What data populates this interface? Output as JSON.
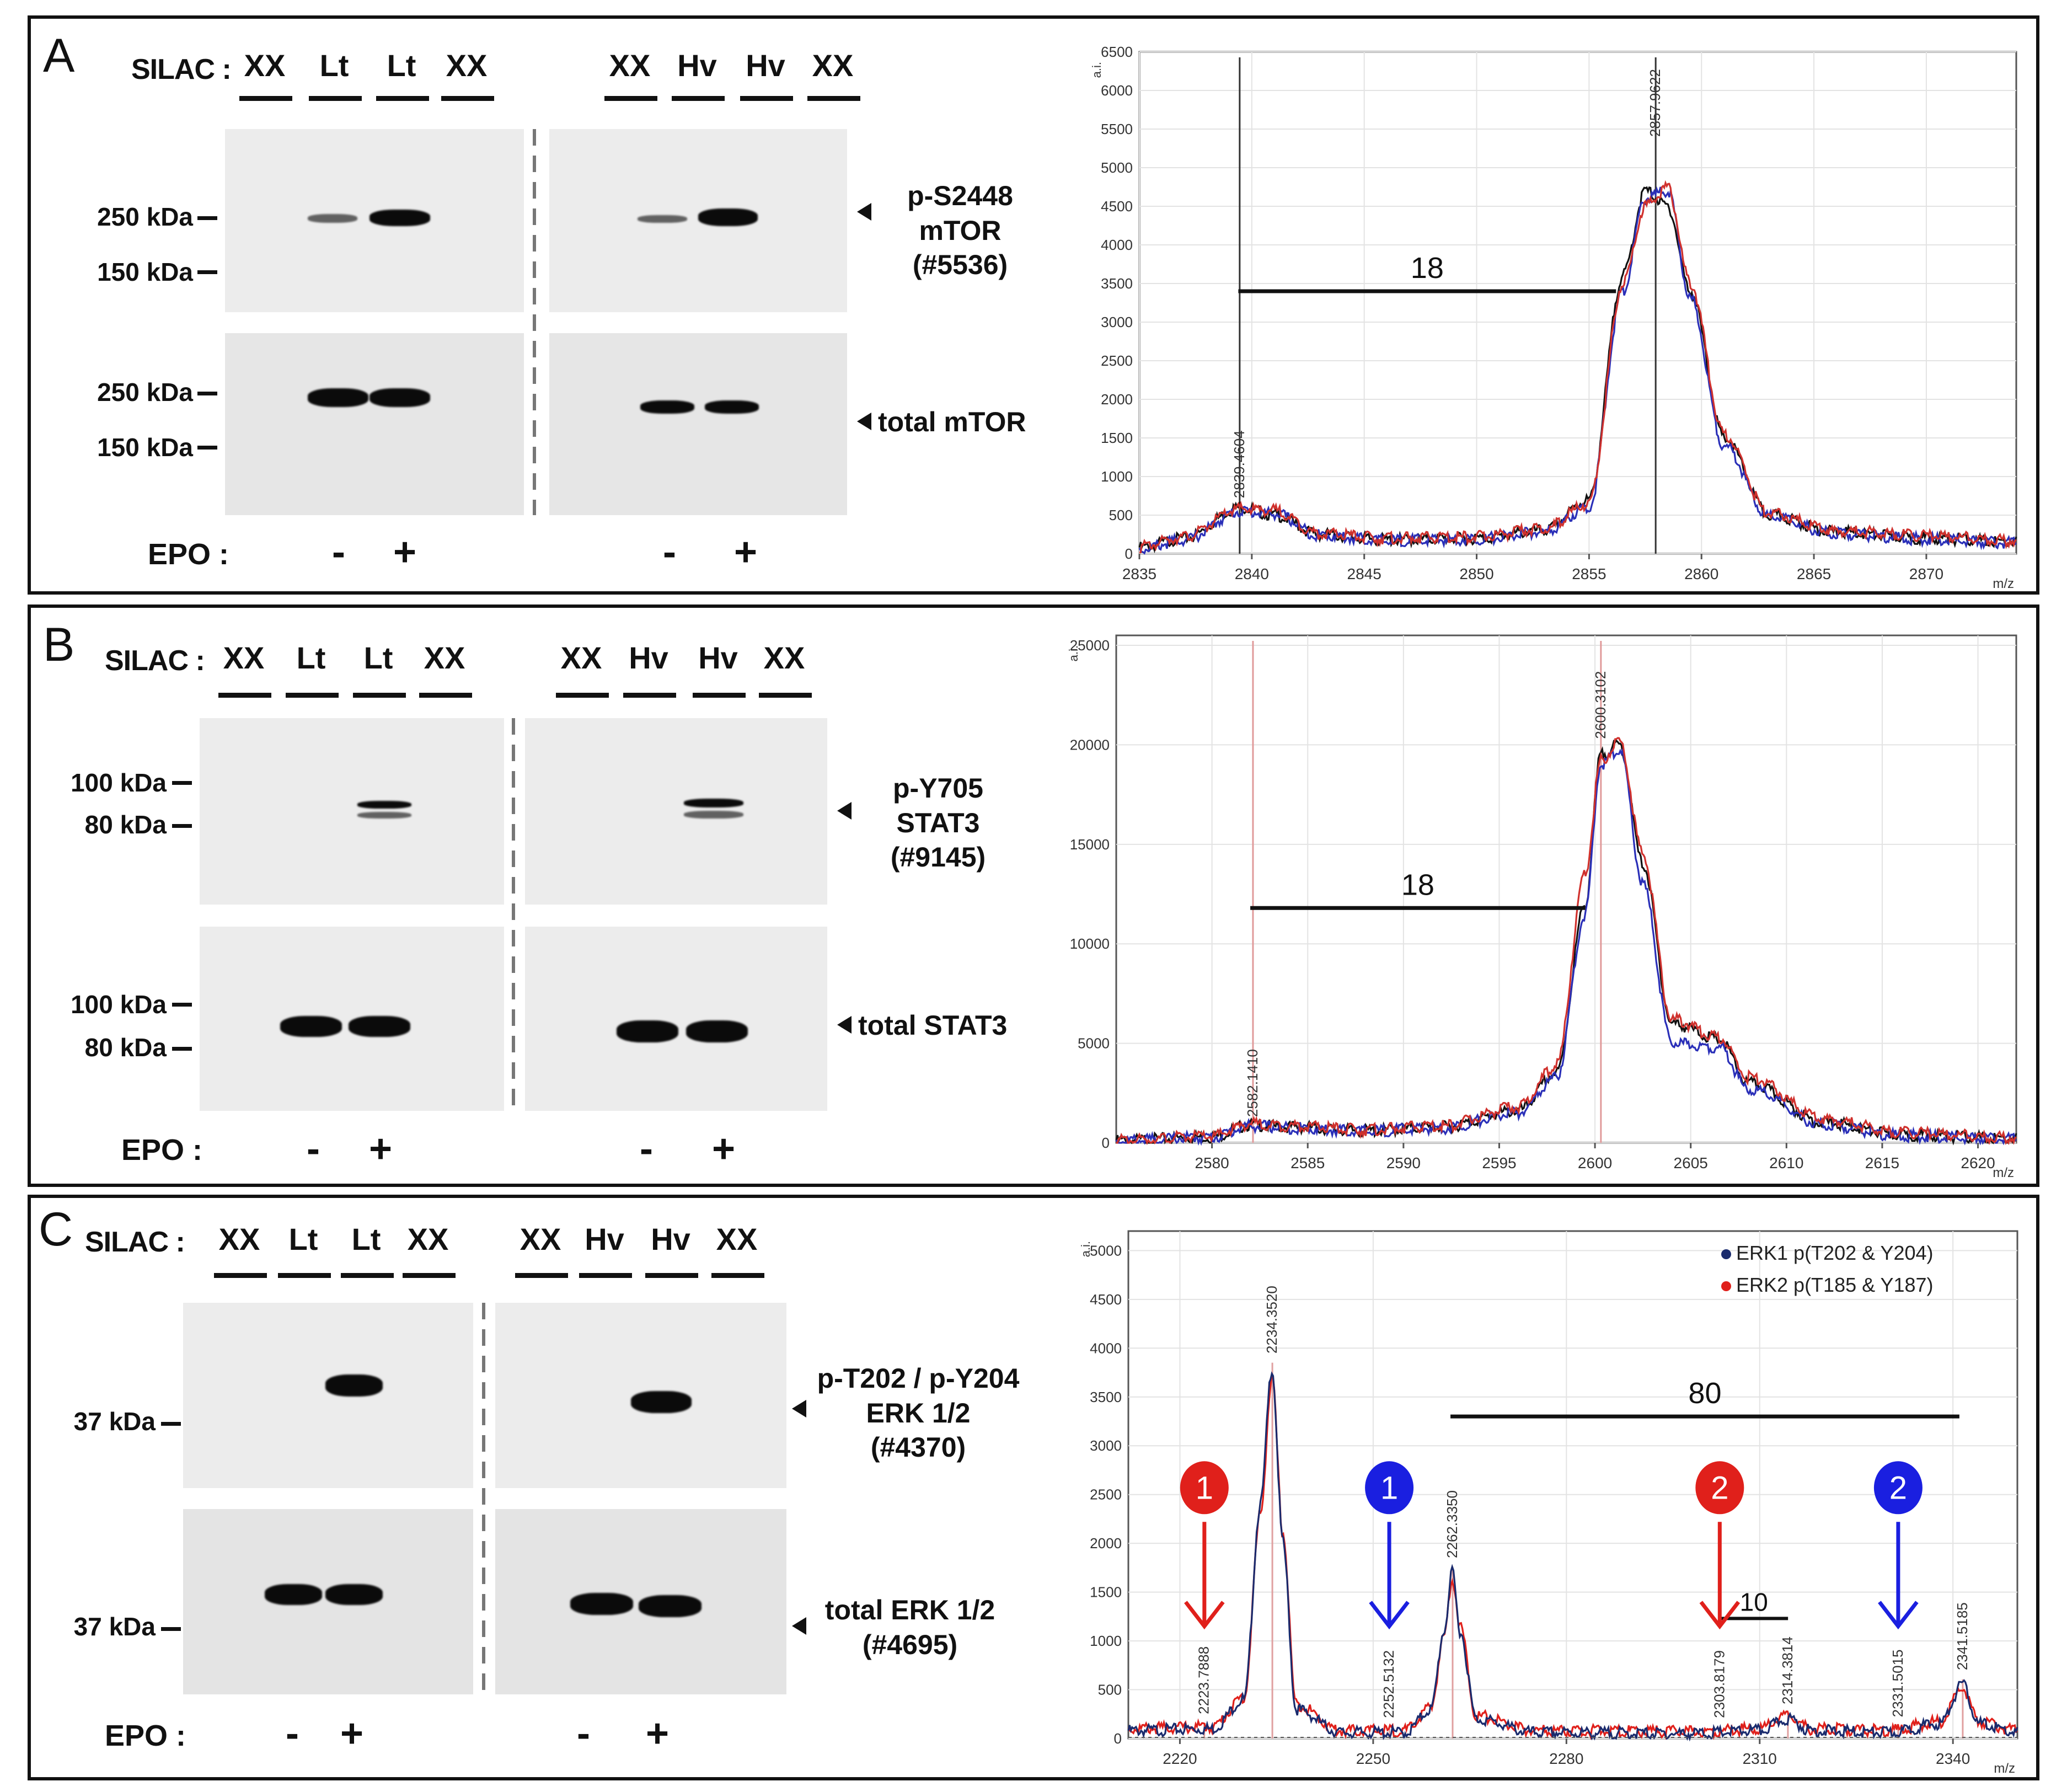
{
  "panels": [
    {
      "label": "A",
      "silac_label": "SILAC :",
      "lanes_left": [
        "XX",
        "Lt",
        "Lt",
        "XX"
      ],
      "lanes_right": [
        "XX",
        "Hv",
        "Hv",
        "XX"
      ],
      "blots": [
        {
          "target": [
            "p-S2448",
            "mTOR",
            "(#5536)"
          ],
          "markers": [
            "250 kDa",
            "150 kDa"
          ]
        },
        {
          "target": [
            "total mTOR"
          ],
          "markers": [
            "250 kDa",
            "150 kDa"
          ]
        }
      ],
      "epo_label": "EPO :",
      "epo_signs": [
        "-",
        "+",
        "-",
        "+"
      ],
      "spectrum": {
        "y_label": "a.i.",
        "x_label": "m/z",
        "y_ticks": [
          0,
          500,
          1000,
          1500,
          2000,
          2500,
          3000,
          3500,
          4000,
          4500,
          5000,
          5500,
          6000,
          6500
        ],
        "x_ticks": [
          2835,
          2840,
          2845,
          2850,
          2855,
          2860,
          2865,
          2870
        ],
        "xlim": [
          2835,
          2874
        ],
        "ylim": [
          0,
          6500
        ],
        "peak_labels": [
          {
            "x": 2839.4604,
            "text": "2839.4604"
          },
          {
            "x": 2857.9622,
            "text": "2857.9622"
          }
        ],
        "bracket": {
          "x1": 2839.4,
          "x2": 2856.2,
          "y": 3400,
          "label": "18"
        }
      }
    },
    {
      "label": "B",
      "silac_label": "SILAC :",
      "lanes_left": [
        "XX",
        "Lt",
        "Lt",
        "XX"
      ],
      "lanes_right": [
        "XX",
        "Hv",
        "Hv",
        "XX"
      ],
      "blots": [
        {
          "target": [
            "p-Y705",
            "STAT3",
            "(#9145)"
          ],
          "markers": [
            "100 kDa",
            "80 kDa"
          ]
        },
        {
          "target": [
            "total STAT3"
          ],
          "markers": [
            "100 kDa",
            "80 kDa"
          ]
        }
      ],
      "epo_label": "EPO :",
      "epo_signs": [
        "-",
        "+",
        "-",
        "+"
      ],
      "spectrum": {
        "y_label": "a.i.",
        "x_label": "m/z",
        "y_ticks": [
          0,
          5000,
          10000,
          15000,
          20000,
          25000
        ],
        "x_ticks": [
          2580,
          2585,
          2590,
          2595,
          2600,
          2605,
          2610,
          2615,
          2620
        ],
        "xlim": [
          2575,
          2622
        ],
        "ylim": [
          0,
          25500
        ],
        "peak_labels": [
          {
            "x": 2582.141,
            "text": "2582.1410"
          },
          {
            "x": 2600.3102,
            "text": "2600.3102"
          }
        ],
        "bracket": {
          "x1": 2582,
          "x2": 2599.5,
          "y": 11800,
          "label": "18"
        }
      }
    },
    {
      "label": "C",
      "silac_label": "SILAC :",
      "lanes_left": [
        "XX",
        "Lt",
        "Lt",
        "XX"
      ],
      "lanes_right": [
        "XX",
        "Hv",
        "Hv",
        "XX"
      ],
      "blots": [
        {
          "target": [
            "p-T202 / p-Y204",
            "ERK 1/2",
            "(#4370)"
          ],
          "markers": [
            "37 kDa"
          ]
        },
        {
          "target": [
            "total ERK 1/2",
            "(#4695)"
          ],
          "markers": [
            "37 kDa"
          ]
        }
      ],
      "epo_label": "EPO :",
      "epo_signs": [
        "-",
        "+",
        "-",
        "+"
      ],
      "spectrum": {
        "y_label": "a.i.",
        "x_label": "m/z",
        "y_ticks": [
          0,
          500,
          1000,
          1500,
          2000,
          2500,
          3000,
          3500,
          4000,
          4500,
          5000
        ],
        "x_ticks": [
          2220,
          2250,
          2280,
          2310,
          2340
        ],
        "xlim": [
          2212,
          2350
        ],
        "ylim": [
          0,
          5200
        ],
        "legend": [
          {
            "label": "ERK1 p(T202 & Y204)",
            "color": "#1a2b6d"
          },
          {
            "label": "ERK2 p(T185 & Y187)",
            "color": "#e0201b"
          }
        ],
        "peak_labels": [
          {
            "x": 2223.7888,
            "text": "2223.7888"
          },
          {
            "x": 2234.352,
            "text": "2234.3520"
          },
          {
            "x": 2252.5132,
            "text": "2252.5132"
          },
          {
            "x": 2262.335,
            "text": "2262.3350"
          },
          {
            "x": 2303.8179,
            "text": "2303.8179"
          },
          {
            "x": 2314.3814,
            "text": "2314.3814"
          },
          {
            "x": 2331.5015,
            "text": "2331.5015"
          },
          {
            "x": 2341.5185,
            "text": "2341.5185"
          }
        ],
        "bracket": {
          "x1": 2262,
          "x2": 2341,
          "y": 3300,
          "label": "80"
        },
        "bracket2": {
          "x1": 2303.8,
          "x2": 2314.4,
          "y": 1230,
          "label": "10"
        },
        "markers": [
          {
            "x": 2223.8,
            "num": "1",
            "color": "#e0201b"
          },
          {
            "x": 2252.5,
            "num": "1",
            "color": "#1a1fe0"
          },
          {
            "x": 2303.8,
            "num": "2",
            "color": "#e0201b"
          },
          {
            "x": 2331.5,
            "num": "2",
            "color": "#1a1fe0"
          }
        ]
      }
    }
  ],
  "chart_data": [
    {
      "type": "line",
      "title": "",
      "xlabel": "m/z",
      "ylabel": "a.i.",
      "xlim": [
        2835,
        2874
      ],
      "ylim": [
        0,
        6500
      ],
      "series": [
        {
          "name": "black",
          "x": [
            2835,
            2837,
            2839.5,
            2841,
            2843,
            2846,
            2850,
            2853,
            2855,
            2856.5,
            2857.5,
            2858.5,
            2859.5,
            2861,
            2863,
            2866,
            2870,
            2874
          ],
          "values": [
            80,
            200,
            600,
            500,
            250,
            180,
            200,
            300,
            700,
            3600,
            4700,
            4500,
            3400,
            1500,
            500,
            280,
            200,
            150
          ]
        },
        {
          "name": "blue",
          "x": [
            2835,
            2837,
            2839.5,
            2841,
            2843,
            2846,
            2850,
            2853,
            2855,
            2856.5,
            2857.5,
            2858.5,
            2859.5,
            2861,
            2863,
            2866,
            2870,
            2874
          ],
          "values": [
            60,
            180,
            550,
            520,
            240,
            170,
            190,
            280,
            600,
            3400,
            4600,
            4700,
            3300,
            1400,
            480,
            260,
            190,
            140
          ]
        },
        {
          "name": "red",
          "x": [
            2835,
            2837,
            2839.5,
            2841,
            2843,
            2846,
            2850,
            2853,
            2855,
            2856.5,
            2857.5,
            2858.5,
            2859.5,
            2861,
            2863,
            2866,
            2870,
            2874
          ],
          "values": [
            90,
            220,
            580,
            560,
            260,
            200,
            220,
            320,
            650,
            3500,
            4500,
            4750,
            3500,
            1550,
            520,
            300,
            230,
            170
          ]
        }
      ]
    },
    {
      "type": "line",
      "title": "",
      "xlabel": "m/z",
      "ylabel": "a.i.",
      "xlim": [
        2575,
        2622
      ],
      "ylim": [
        0,
        25500
      ],
      "series": [
        {
          "name": "black",
          "x": [
            2575,
            2580,
            2582,
            2584,
            2588,
            2592,
            2596,
            2598,
            2599.5,
            2600.3,
            2601.3,
            2602.5,
            2604,
            2606.5,
            2608,
            2612,
            2616,
            2622
          ],
          "values": [
            100,
            300,
            900,
            800,
            600,
            800,
            1600,
            3500,
            12000,
            19500,
            20000,
            14000,
            6000,
            5200,
            3000,
            1000,
            400,
            200
          ]
        },
        {
          "name": "blue",
          "x": [
            2575,
            2580,
            2582,
            2584,
            2588,
            2592,
            2596,
            2598,
            2599.5,
            2600.3,
            2601.3,
            2602.5,
            2604,
            2606.5,
            2608,
            2612,
            2616,
            2622
          ],
          "values": [
            90,
            280,
            850,
            750,
            580,
            750,
            1500,
            3300,
            11500,
            19000,
            19800,
            13000,
            5000,
            4800,
            2700,
            900,
            350,
            180
          ]
        },
        {
          "name": "red",
          "x": [
            2575,
            2580,
            2582,
            2584,
            2588,
            2592,
            2596,
            2598,
            2599.5,
            2600.3,
            2601.3,
            2602.5,
            2604,
            2606.5,
            2608,
            2612,
            2616,
            2622
          ],
          "values": [
            110,
            330,
            950,
            850,
            650,
            850,
            1800,
            3900,
            13500,
            19200,
            20200,
            14500,
            6200,
            5300,
            3300,
            1200,
            500,
            250
          ]
        }
      ]
    },
    {
      "type": "line",
      "title": "",
      "xlabel": "m/z",
      "ylabel": "a.i.",
      "xlim": [
        2212,
        2350
      ],
      "ylim": [
        0,
        5200
      ],
      "series": [
        {
          "name": "ERK1 p(T202 & Y204)",
          "x": [
            2212,
            2225,
            2230,
            2232.5,
            2234.3,
            2236,
            2238,
            2245,
            2255,
            2259,
            2261,
            2262.3,
            2263.5,
            2266,
            2275,
            2300,
            2310,
            2314.4,
            2318,
            2330,
            2338,
            2341.5,
            2344,
            2350
          ],
          "values": [
            80,
            100,
            400,
            2400,
            3800,
            2000,
            300,
            60,
            60,
            300,
            1100,
            1700,
            1100,
            200,
            60,
            50,
            80,
            200,
            80,
            60,
            150,
            550,
            150,
            60
          ]
        },
        {
          "name": "ERK2 p(T185 & Y187)",
          "x": [
            2212,
            2225,
            2230,
            2232.5,
            2234.3,
            2236,
            2238,
            2245,
            2255,
            2259,
            2261,
            2262.3,
            2263.5,
            2266,
            2275,
            2300,
            2310,
            2314.4,
            2318,
            2330,
            2338,
            2341.5,
            2344,
            2350
          ],
          "values": [
            100,
            120,
            420,
            2300,
            3700,
            2100,
            350,
            80,
            80,
            320,
            1050,
            1650,
            1150,
            230,
            80,
            70,
            100,
            230,
            100,
            80,
            170,
            520,
            170,
            80
          ]
        }
      ]
    }
  ]
}
